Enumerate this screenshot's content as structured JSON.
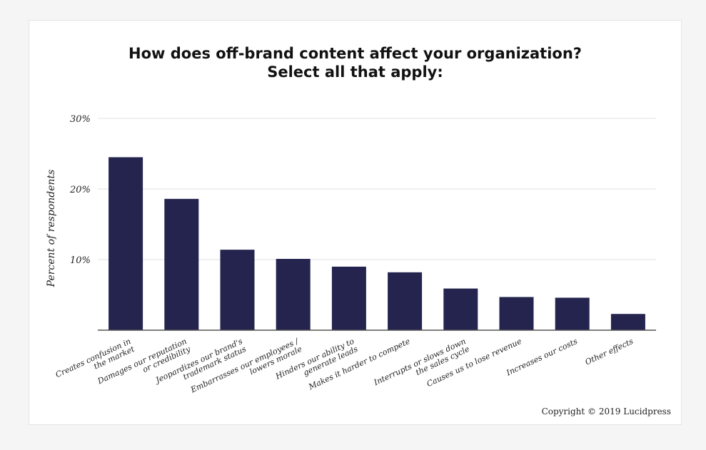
{
  "chart_data": {
    "type": "bar",
    "title_lines": [
      "How does off-brand content affect your organization?",
      "Select all that apply:"
    ],
    "ylabel": "Percent of respondents",
    "xlabel": "",
    "ylim": [
      0,
      30
    ],
    "yticks": [
      {
        "value": 10,
        "label": "10%"
      },
      {
        "value": 20,
        "label": "20%"
      },
      {
        "value": 30,
        "label": "30%"
      }
    ],
    "grid": true,
    "bar_color": "#24244f",
    "categories": [
      [
        "Creates confusion in",
        "the market"
      ],
      [
        "Damages our reputation",
        "or credibility"
      ],
      [
        "Jeopardizes our brand's",
        "trademark status"
      ],
      [
        "Embarrasses our employees /",
        "lowers morale"
      ],
      [
        "Hinders our ability to",
        "generate leads"
      ],
      [
        "Makes it harder to compete"
      ],
      [
        "Interrupts or slows down",
        "the sales cycle"
      ],
      [
        "Causes us to lose revenue"
      ],
      [
        "Increases our costs"
      ],
      [
        "Other effects"
      ]
    ],
    "values": [
      24.5,
      18.6,
      11.4,
      10.1,
      9.0,
      8.2,
      5.9,
      4.7,
      4.6,
      2.3
    ]
  },
  "footer": {
    "copyright": "Copyright © 2019 Lucidpress"
  }
}
